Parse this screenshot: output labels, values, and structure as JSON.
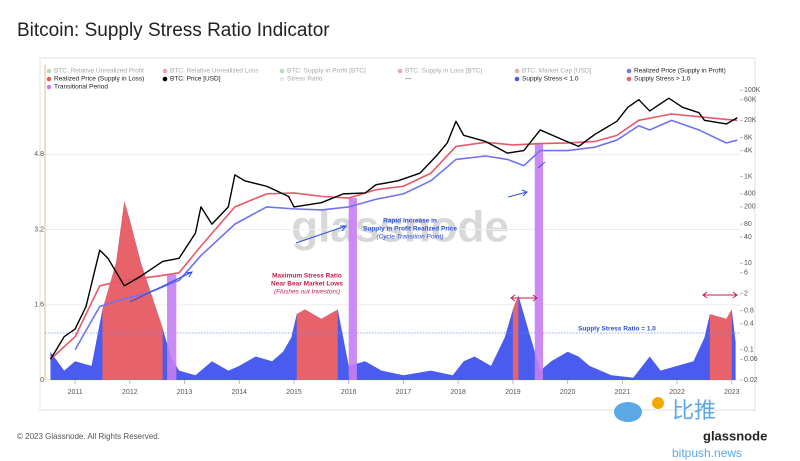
{
  "chart_data": {
    "type": "line",
    "title": "Bitcoin: Supply Stress Ratio Indicator",
    "footer": "© 2023 Glassnode. All Rights Reserved.",
    "brand": "glassnode",
    "watermark": "glassnode",
    "repost_mark": [
      "比推",
      "bitpush.news"
    ],
    "xlim": [
      2010.45,
      2023.15
    ],
    "xticks": [
      2011,
      2012,
      2013,
      2014,
      2015,
      2016,
      2017,
      2018,
      2019,
      2020,
      2021,
      2022,
      2023
    ],
    "ylim": [
      0,
      6.7
    ],
    "yticks": [
      0,
      1.6,
      3.2,
      4.8
    ],
    "y2lim": [
      0.02,
      380000
    ],
    "y2_log": true,
    "y2ticks": [
      0.02,
      0.06,
      0.1,
      0.4,
      0.8,
      2,
      6,
      10,
      40,
      80,
      200,
      400,
      {
        "value": 1000,
        "label": "1K"
      },
      {
        "value": 4000,
        "label": "4K"
      },
      {
        "value": 8000,
        "label": "8K"
      },
      {
        "value": 20000,
        "label": "20K"
      },
      {
        "value": 60000,
        "label": "60K"
      },
      {
        "value": 100000,
        "label": "100K"
      }
    ],
    "grid": true,
    "series": [
      {
        "name": "BTC: Relative Unrealized Profit",
        "color": "#3cb44b",
        "dimmed": true
      },
      {
        "name": "BTC: Relative Unrealized Loss",
        "color": "#e6194b",
        "dimmed": true
      },
      {
        "name": "BTC: Supply in Profit [BTC]",
        "color": "#3cb44b",
        "dimmed": true
      },
      {
        "name": "BTC: Supply in Loss [BTC]",
        "color": "#e6194b",
        "dimmed": true
      },
      {
        "name": "BTC: Market Cap [USD]",
        "color": "#9a4a1a",
        "dimmed": true
      },
      {
        "name": "Realized Price (Supply in Profit)",
        "color": "#6f73f0",
        "axis": "y2",
        "x": [
          2011.0,
          2011.45,
          2011.9,
          2012.3,
          2012.9,
          2013.3,
          2013.92,
          2014.5,
          2015.0,
          2015.5,
          2016.0,
          2016.5,
          2017.0,
          2017.5,
          2017.96,
          2018.5,
          2018.9,
          2019.2,
          2019.5,
          2020.0,
          2020.5,
          2020.9,
          2021.3,
          2021.5,
          2021.9,
          2022.4,
          2022.9,
          2023.1
        ],
        "values": [
          0.1,
          1,
          1.5,
          2,
          4,
          15,
          80,
          200,
          180,
          170,
          200,
          300,
          400,
          800,
          2500,
          3000,
          2500,
          1800,
          4000,
          4000,
          4800,
          7000,
          15000,
          12000,
          20000,
          12000,
          6000,
          7000
        ]
      },
      {
        "name": "Realized Price (Supply in Loss)",
        "color": "#e8586a",
        "axis": "y2",
        "x": [
          2010.55,
          2011.0,
          2011.45,
          2011.9,
          2012.5,
          2012.9,
          2013.3,
          2013.92,
          2014.5,
          2015.0,
          2015.5,
          2016.0,
          2016.5,
          2017.0,
          2017.5,
          2017.96,
          2018.5,
          2019.0,
          2019.5,
          2020.0,
          2020.5,
          2020.9,
          2021.3,
          2021.9,
          2022.3,
          2022.9,
          2023.1
        ],
        "values": [
          0.06,
          0.2,
          3,
          4,
          5,
          6,
          25,
          200,
          400,
          420,
          350,
          320,
          500,
          600,
          1200,
          5000,
          6200,
          5400,
          5800,
          6000,
          6500,
          9000,
          20000,
          28000,
          25000,
          21000,
          20000
        ]
      },
      {
        "name": "BTC: Price [USD]",
        "color": "#000000",
        "axis": "y2",
        "x": [
          2010.55,
          2010.8,
          2011.0,
          2011.2,
          2011.45,
          2011.6,
          2011.9,
          2012.2,
          2012.6,
          2012.9,
          2013.2,
          2013.3,
          2013.5,
          2013.8,
          2013.92,
          2014.1,
          2014.5,
          2014.9,
          2015.0,
          2015.5,
          2015.9,
          2016.3,
          2016.5,
          2016.9,
          2017.3,
          2017.6,
          2017.8,
          2017.96,
          2018.1,
          2018.5,
          2018.9,
          2019.2,
          2019.5,
          2019.9,
          2020.2,
          2020.5,
          2020.9,
          2021.1,
          2021.3,
          2021.5,
          2021.85,
          2022.1,
          2022.4,
          2022.5,
          2022.9,
          2023.1
        ],
        "values": [
          0.06,
          0.2,
          0.3,
          1,
          20,
          13,
          3,
          5,
          11,
          13,
          50,
          200,
          80,
          200,
          1100,
          800,
          600,
          350,
          200,
          250,
          400,
          420,
          650,
          800,
          1200,
          3000,
          6000,
          19000,
          9000,
          6500,
          3500,
          4000,
          12000,
          7200,
          5000,
          9500,
          19000,
          40000,
          60000,
          33000,
          65000,
          40000,
          30000,
          20000,
          16500,
          23000
        ]
      },
      {
        "name": "Stress Ratio",
        "color": "#cccccc",
        "dimmed": true
      },
      {
        "name": "---"
      },
      {
        "name": "Supply Stress < 1.0",
        "color": "#4a5cf0",
        "role": "below"
      },
      {
        "name": "Supply Stress > 1.0",
        "color": "#e8626a",
        "role": "above"
      },
      {
        "name": "Transitional Period",
        "color": "#c77df3",
        "ranges": [
          [
            2012.68,
            2012.85
          ],
          [
            2016.0,
            2016.15
          ],
          [
            2019.4,
            2019.55
          ]
        ]
      }
    ],
    "stress_ratio": {
      "threshold": 1,
      "x": [
        2010.55,
        2010.8,
        2011.0,
        2011.3,
        2011.5,
        2011.75,
        2011.9,
        2012.0,
        2012.2,
        2012.4,
        2012.6,
        2012.75,
        2012.9,
        2013.2,
        2013.5,
        2013.8,
        2014.0,
        2014.3,
        2014.6,
        2014.8,
        2014.95,
        2015.05,
        2015.2,
        2015.5,
        2015.8,
        2015.9,
        2016.0,
        2016.3,
        2016.6,
        2017.0,
        2017.5,
        2017.9,
        2018.1,
        2018.3,
        2018.6,
        2018.85,
        2019.0,
        2019.1,
        2019.3,
        2019.5,
        2019.7,
        2020.0,
        2020.2,
        2020.4,
        2020.8,
        2021.2,
        2021.5,
        2021.7,
        2022.0,
        2022.3,
        2022.5,
        2022.6,
        2022.9,
        2023.0,
        2023.07
      ],
      "values": [
        0.6,
        0.2,
        0.4,
        0.3,
        1.5,
        2.5,
        3.8,
        3.4,
        2.5,
        1.8,
        1.1,
        0.5,
        0.2,
        0.1,
        0.4,
        0.2,
        0.3,
        0.5,
        0.4,
        0.6,
        0.9,
        1.4,
        1.5,
        1.3,
        1.5,
        0.9,
        0.3,
        0.4,
        0.2,
        0.1,
        0.2,
        0.1,
        0.4,
        0.5,
        0.3,
        0.9,
        1.5,
        1.8,
        1.0,
        0.2,
        0.4,
        0.6,
        0.5,
        0.3,
        0.1,
        0.05,
        0.5,
        0.2,
        0.3,
        0.4,
        0.9,
        1.4,
        1.3,
        1.5,
        0.8
      ]
    },
    "annotations": [
      {
        "lines": [
          "Rapid Increase in",
          "Supply in Profit Realized Price"
        ],
        "note": "(Cycle Transition Point)",
        "color": "#2b4fd8"
      },
      {
        "lines": [
          "Maximum Stress Ratio",
          "Near Bear Market Lows"
        ],
        "note": "(Flushes out Investors)",
        "color": "#c8194b"
      },
      {
        "lines": [
          "Supply Stress Ratio = 1.0"
        ],
        "color": "#2b4fd8"
      }
    ]
  }
}
